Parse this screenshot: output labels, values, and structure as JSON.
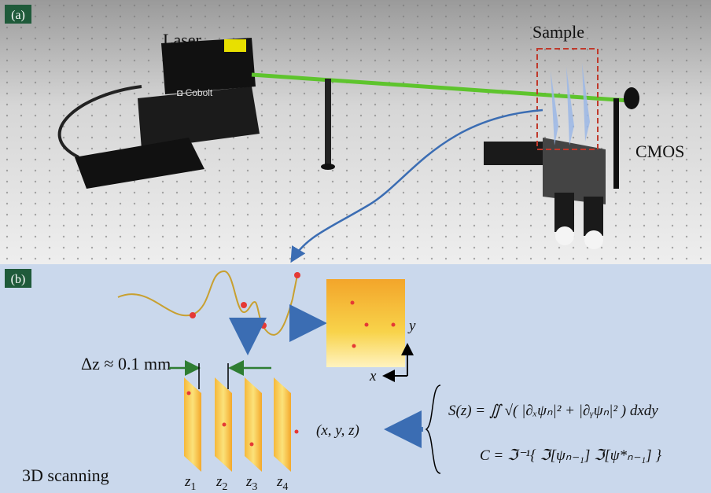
{
  "panel_a": {
    "label": "(a)",
    "laser": "Laser",
    "sample": "Sample",
    "cmos": "CMOS"
  },
  "panel_b": {
    "label": "(b)",
    "delta_z": "Δz ≈ 0.1 mm",
    "axis_x": "x",
    "axis_y": "y",
    "position": "(x, y, z)",
    "equations": [
      "S(z) = ∬ √( |∂ₓψₙ|² + |∂ᵧψₙ|² ) dxdy",
      "C = ℑ⁻¹{ ℑ[ψₙ₋₁] ℑ[ψ*ₙ₋₁] }"
    ],
    "caption": "3D scanning",
    "planes": [
      {
        "symbol": "z",
        "sub": "1"
      },
      {
        "symbol": "z",
        "sub": "2"
      },
      {
        "symbol": "z",
        "sub": "3"
      },
      {
        "symbol": "z",
        "sub": "4"
      }
    ]
  }
}
